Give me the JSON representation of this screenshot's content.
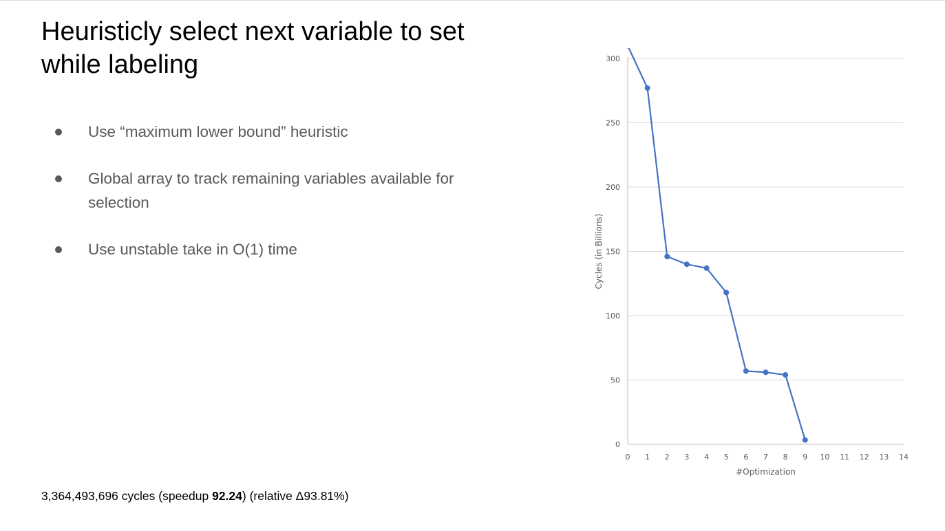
{
  "slide": {
    "title": "Heuristicly select next variable to set while labeling",
    "bullets": [
      "Use “maximum lower bound” heuristic",
      "Global array to track remaining variables available for selection",
      "Use unstable take in O(1) time"
    ],
    "footer": {
      "cycles_text": "3,364,493,696 cycles (speedup ",
      "speedup_value": "92.24",
      "relative_text": ") (relative Δ93.81%)"
    }
  },
  "chart_data": {
    "type": "line",
    "title": "",
    "xlabel": "#Optimization",
    "ylabel": "Cycles (in Billions)",
    "xlim": [
      0,
      14
    ],
    "ylim": [
      0,
      300
    ],
    "x_ticks": [
      "0",
      "1",
      "2",
      "3",
      "4",
      "5",
      "6",
      "7",
      "8",
      "9",
      "10",
      "11",
      "12",
      "13",
      "14"
    ],
    "y_ticks": [
      "0",
      "50",
      "100",
      "150",
      "200",
      "250",
      "300"
    ],
    "grid": true,
    "legend": "none",
    "series": [
      {
        "x": [
          0,
          1,
          2,
          3,
          4,
          5,
          6,
          7,
          8,
          9
        ],
        "values": [
          310,
          277,
          146,
          140,
          137,
          118,
          57,
          56,
          54,
          3.4
        ],
        "color": "#4472c4"
      }
    ]
  }
}
